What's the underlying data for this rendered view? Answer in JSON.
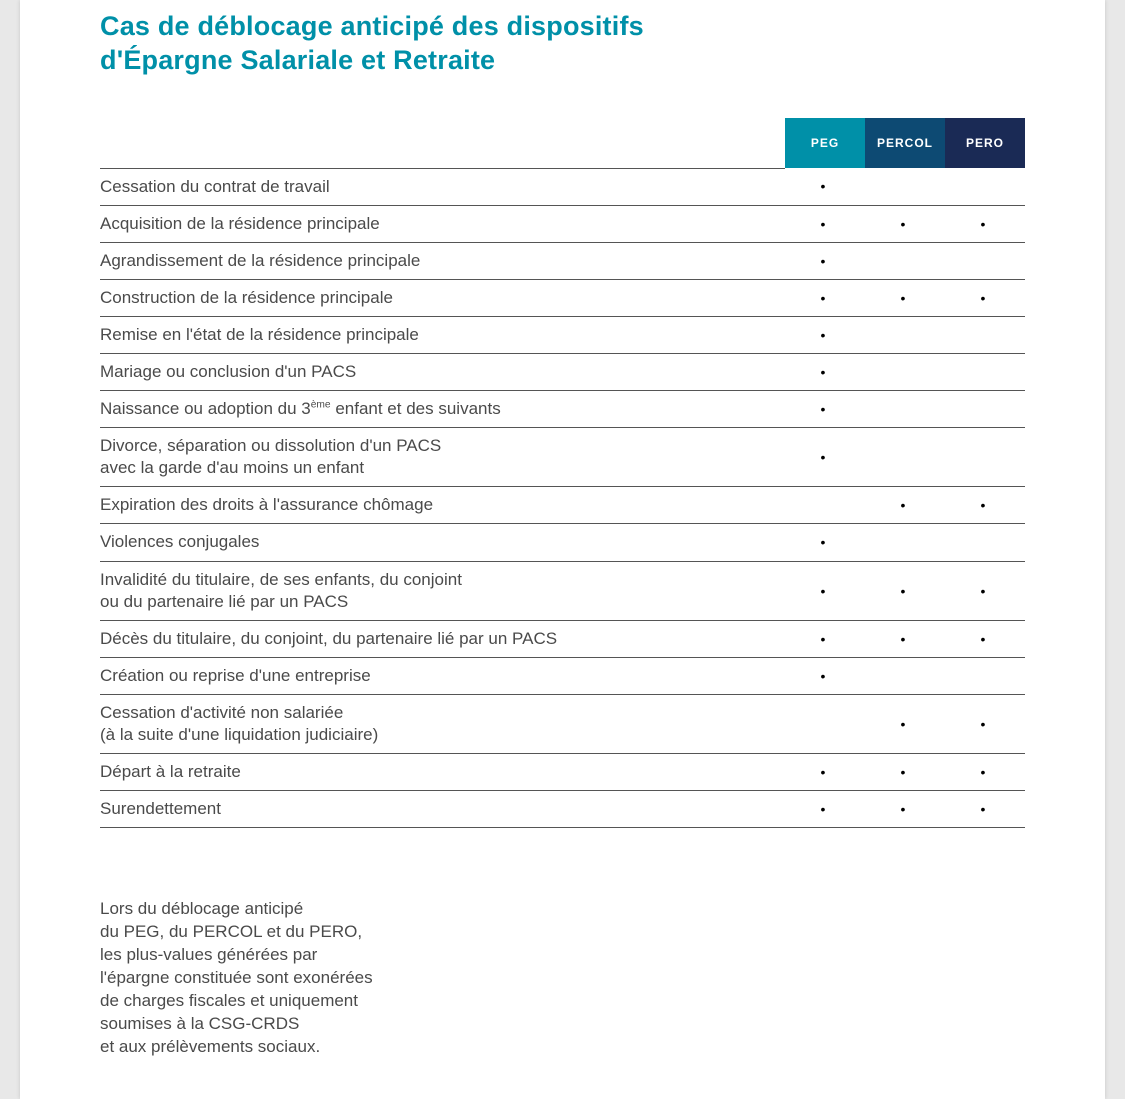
{
  "title_line1": "Cas de déblocage anticipé des dispositifs",
  "title_line2": "d'Épargne Salariale et Retraite",
  "colors": {
    "heading": "#0090a8",
    "header_bg": [
      "#0090a8",
      "#0d4a73",
      "#1a2a55"
    ],
    "header_fg": "#ffffff",
    "rule": "#555555",
    "text": "#4a4a4a",
    "page_bg": "#ffffff",
    "outer_bg": "#e8e8e8"
  },
  "columns": [
    "PEG",
    "PERCOL",
    "PERO"
  ],
  "mark_glyph": "•",
  "rows": [
    {
      "label": "Cessation du contrat de travail",
      "marks": [
        true,
        false,
        false
      ]
    },
    {
      "label": "Acquisition de la résidence principale",
      "marks": [
        true,
        true,
        true
      ]
    },
    {
      "label": "Agrandissement de la résidence principale",
      "marks": [
        true,
        false,
        false
      ]
    },
    {
      "label": "Construction de la résidence principale",
      "marks": [
        true,
        true,
        true
      ]
    },
    {
      "label": "Remise en l'état de la résidence principale",
      "marks": [
        true,
        false,
        false
      ]
    },
    {
      "label": "Mariage ou conclusion d'un PACS",
      "marks": [
        true,
        false,
        false
      ]
    },
    {
      "label": "Naissance ou adoption du 3<sup class=\"sup\">ème</sup> enfant et des suivants",
      "html": true,
      "marks": [
        true,
        false,
        false
      ]
    },
    {
      "label": "Divorce, séparation ou dissolution d'un PACS\navec la garde d'au moins un enfant",
      "marks": [
        true,
        false,
        false
      ]
    },
    {
      "label": "Expiration des droits à l'assurance chômage",
      "marks": [
        false,
        true,
        true
      ]
    },
    {
      "label": "Violences conjugales",
      "marks": [
        true,
        false,
        false
      ]
    },
    {
      "label": "Invalidité du titulaire, de ses enfants, du conjoint\nou du partenaire lié par un PACS",
      "marks": [
        true,
        true,
        true
      ]
    },
    {
      "label": "Décès du titulaire, du conjoint, du partenaire lié par un PACS",
      "marks": [
        true,
        true,
        true
      ]
    },
    {
      "label": "Création ou reprise d'une entreprise",
      "marks": [
        true,
        false,
        false
      ]
    },
    {
      "label": "Cessation d'activité non salariée\n(à la suite d'une liquidation judiciaire)",
      "marks": [
        false,
        true,
        true
      ]
    },
    {
      "label": "Départ à la retraite",
      "marks": [
        true,
        true,
        true
      ]
    },
    {
      "label": "Surendettement",
      "marks": [
        true,
        true,
        true
      ]
    }
  ],
  "footnote_lines": [
    "Lors du déblocage anticipé",
    "du PEG, du PERCOL et du PERO,",
    "les plus-values générées par",
    "l'épargne constituée sont exonérées",
    "de charges fiscales et uniquement",
    "soumises à la CSG-CRDS",
    "et aux prélèvements sociaux."
  ]
}
